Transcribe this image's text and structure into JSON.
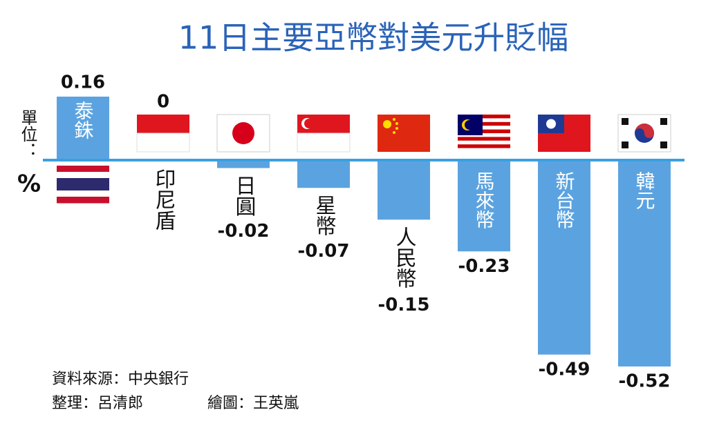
{
  "chart_data": {
    "type": "bar",
    "title": "11日主要亞幣對美元升貶幅",
    "unit_label": "單位：",
    "unit": "%",
    "categories": [
      "泰銖",
      "印尼盾",
      "日圓",
      "星幣",
      "人民幣",
      "馬來幣",
      "新台幣",
      "韓元"
    ],
    "values": [
      0.16,
      0,
      -0.02,
      -0.07,
      -0.15,
      -0.23,
      -0.49,
      -0.52
    ],
    "color": "#5ba3e0",
    "source": "資料來源：中央銀行",
    "editor": "整理：呂清郎",
    "graphics": "繪圖：王英嵐"
  }
}
